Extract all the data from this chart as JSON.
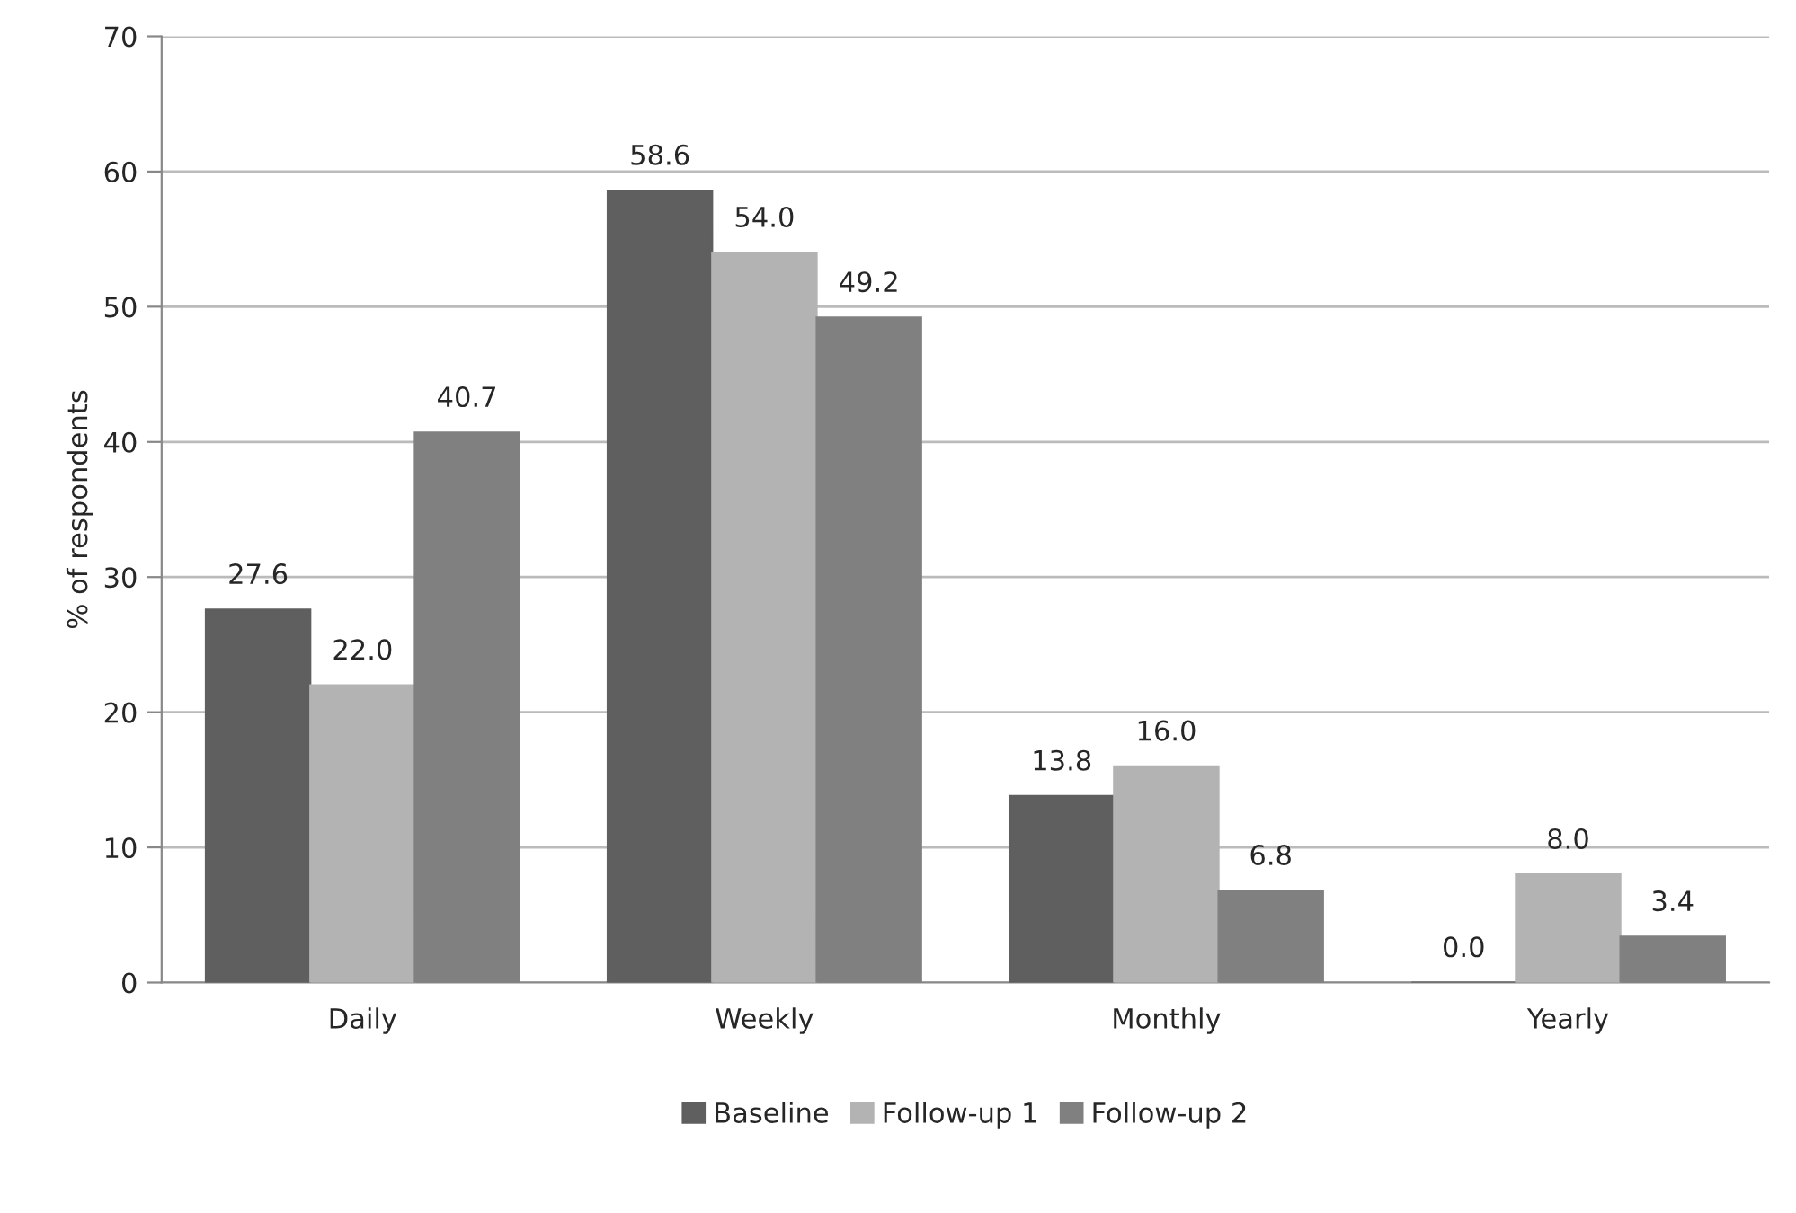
{
  "chart_data": {
    "type": "bar",
    "ylabel": "% of respondents",
    "categories": [
      "Daily",
      "Weekly",
      "Monthly",
      "Yearly"
    ],
    "series": [
      {
        "name": "Baseline",
        "color": "#5f5f5f",
        "values": [
          27.6,
          58.6,
          13.8,
          0.0
        ],
        "value_labels": [
          "27.6",
          "58.6",
          "13.8",
          "0.0"
        ]
      },
      {
        "name": "Follow-up 1",
        "color": "#b3b3b3",
        "values": [
          22.0,
          54.0,
          16.0,
          8.0
        ],
        "value_labels": [
          "22.0",
          "54.0",
          "16.0",
          "8.0"
        ]
      },
      {
        "name": "Follow-up 2",
        "color": "#808080",
        "values": [
          40.7,
          49.2,
          6.8,
          3.4
        ],
        "value_labels": [
          "40.7",
          "49.2",
          "6.8",
          "3.4"
        ]
      }
    ],
    "ylim": [
      0,
      70
    ],
    "yticks": [
      0,
      10,
      20,
      30,
      40,
      50,
      60,
      70
    ],
    "grid": "y",
    "legend": "bottom"
  }
}
